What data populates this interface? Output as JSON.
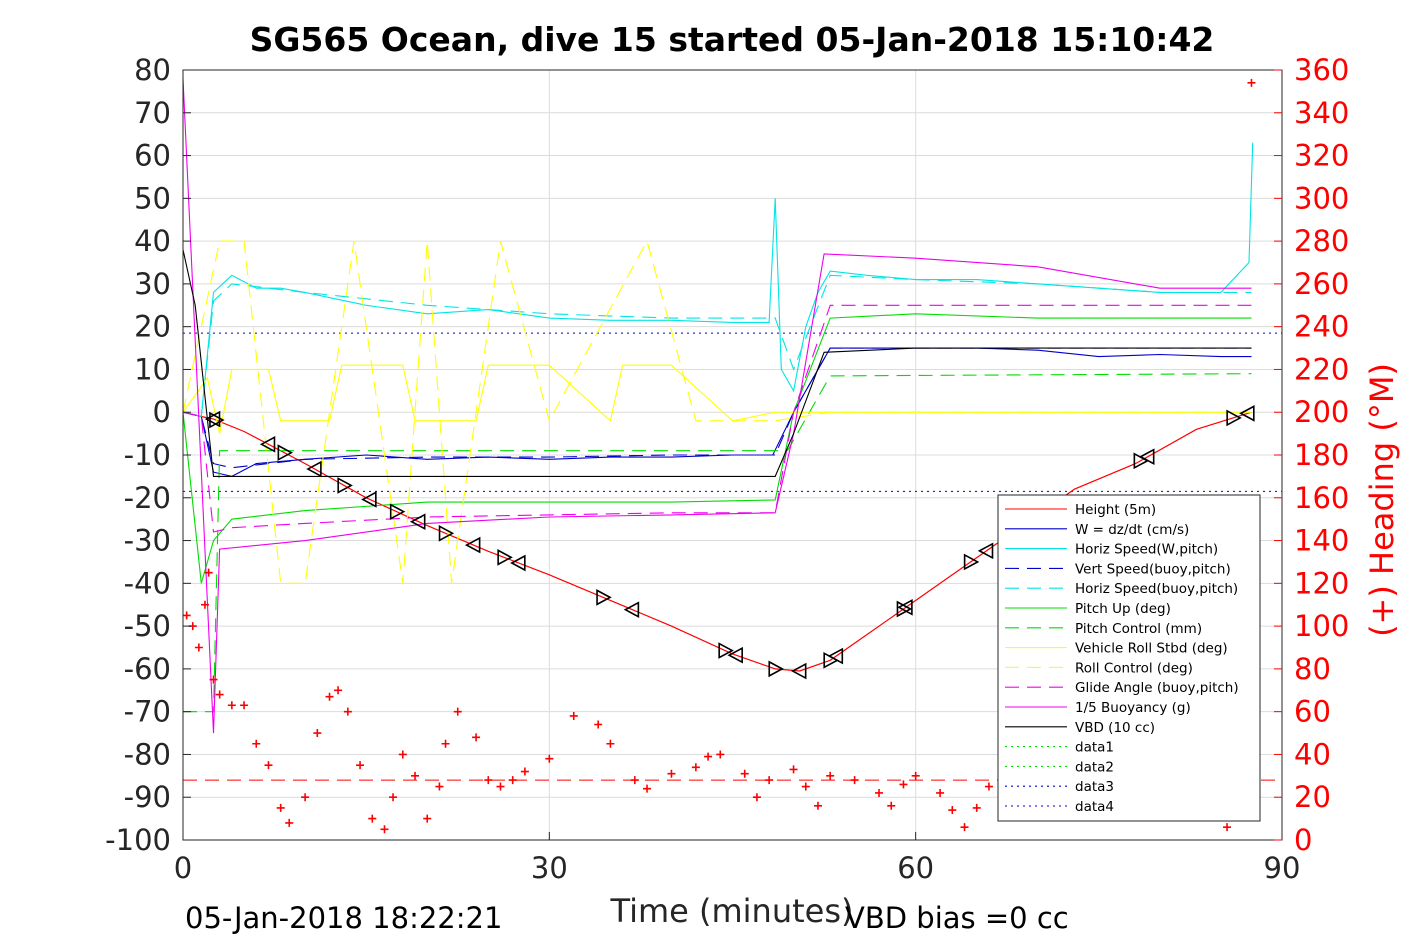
{
  "chart_data": {
    "type": "line",
    "title": "SG565 Ocean, dive 15 started 05-Jan-2018 15:10:42",
    "xlabel": "Time (minutes)",
    "ylabel_right": "(+) Heading (°M)",
    "footer_left": "05-Jan-2018 18:22:21",
    "footer_right": "VBD bias =0 cc",
    "xlim": [
      0,
      90
    ],
    "ylim_left": [
      -100,
      80
    ],
    "ylim_right": [
      0,
      360
    ],
    "grid": true,
    "legend_position": "right, lower half",
    "x_ticks": [
      "0",
      "30",
      "60",
      "90"
    ],
    "y_ticks_left": [
      "80",
      "70",
      "60",
      "50",
      "40",
      "30",
      "20",
      "10",
      "0",
      "-10",
      "-20",
      "-30",
      "-40",
      "-50",
      "-60",
      "-70",
      "-80",
      "-90",
      "-100"
    ],
    "y_ticks_right": [
      "360",
      "340",
      "320",
      "300",
      "280",
      "260",
      "240",
      "220",
      "200",
      "180",
      "160",
      "140",
      "120",
      "100",
      "80",
      "60",
      "40",
      "20",
      "0"
    ],
    "colors": {
      "red": "#ff0000",
      "blue": "#0000cc",
      "cyan": "#00e5e5",
      "green": "#00dd00",
      "yellow": "#ffff00",
      "magenta": "#ee00ee",
      "black": "#000000",
      "grid": "#dcdcdc"
    },
    "series": [
      {
        "name": "Height (5m)",
        "color": "#ff0000",
        "style": "solid",
        "x": [
          0,
          1.5,
          2.5,
          5,
          10,
          15,
          20,
          25,
          30,
          35,
          40,
          45,
          48.5,
          50.5,
          53,
          58,
          63,
          68,
          73,
          78,
          83,
          87.5
        ],
        "y": [
          0,
          -1,
          -1.6,
          -4.5,
          -12,
          -20,
          -26.5,
          -32.5,
          -38,
          -44,
          -50,
          -56.5,
          -60,
          -60.5,
          -58,
          -48,
          -38,
          -28,
          -18,
          -12,
          -4,
          0
        ]
      },
      {
        "name": "W = dz/dt (cm/s)",
        "color": "#0000cc",
        "style": "solid",
        "x": [
          0,
          1.5,
          2.5,
          4,
          6,
          10,
          15,
          20,
          25,
          30,
          35,
          40,
          45,
          48.3,
          50,
          51,
          53,
          60,
          65,
          70,
          75,
          80,
          85,
          87.5
        ],
        "y": [
          0,
          -1,
          -14,
          -15,
          -12,
          -11,
          -10,
          -11,
          -10.5,
          -11,
          -10.5,
          -10.5,
          -10,
          -10,
          0,
          5,
          15,
          15,
          15,
          14.5,
          13,
          13.5,
          13,
          13
        ]
      },
      {
        "name": "Horiz Speed(W,pitch)",
        "color": "#00e5e5",
        "style": "solid",
        "x": [
          0,
          1.5,
          2.5,
          4,
          6,
          8,
          10,
          15,
          20,
          25,
          30,
          35,
          40,
          45,
          48,
          48.5,
          49,
          50,
          51,
          52,
          53,
          56,
          60,
          65,
          70,
          75,
          80,
          85,
          87.3,
          87.6
        ],
        "y": [
          0,
          -1,
          28,
          32,
          29,
          29,
          28,
          25,
          23,
          24,
          22,
          21.5,
          21.5,
          21,
          21,
          50,
          10,
          5,
          20,
          28,
          33,
          32,
          31,
          31,
          30,
          29,
          28,
          28,
          35,
          63
        ]
      },
      {
        "name": "Vert Speed(buoy,pitch)",
        "color": "#0000cc",
        "style": "dashed",
        "x": [
          0,
          1.5,
          2.5,
          4,
          10,
          20,
          30,
          40,
          48.5,
          50,
          53,
          60,
          70,
          80,
          87.5
        ],
        "y": [
          0,
          -1,
          -12,
          -13,
          -11,
          -10.5,
          -10.5,
          -10,
          -10,
          0,
          15,
          15,
          15,
          15,
          15
        ]
      },
      {
        "name": "Horiz Speed(buoy,pitch)",
        "color": "#00e5e5",
        "style": "dashed",
        "x": [
          0,
          1.5,
          2.5,
          4,
          10,
          20,
          30,
          40,
          48.5,
          50,
          53,
          60,
          70,
          80,
          87.5
        ],
        "y": [
          0,
          -1,
          26,
          30,
          28,
          25,
          23,
          22,
          22,
          10,
          32,
          31,
          30,
          28,
          28
        ]
      },
      {
        "name": "Pitch Up (deg)",
        "color": "#00dd00",
        "style": "solid",
        "x": [
          0,
          1.5,
          2.5,
          4,
          10,
          20,
          30,
          40,
          48.5,
          50,
          53,
          60,
          70,
          80,
          87.5
        ],
        "y": [
          0,
          -40,
          -30,
          -25,
          -23,
          -21,
          -21,
          -21,
          -20.5,
          0,
          22,
          23,
          22,
          22,
          22
        ]
      },
      {
        "name": "Pitch Control (mm)",
        "color": "#00dd00",
        "style": "dashed",
        "x": [
          0,
          2.5,
          3,
          48.5,
          49.5,
          53,
          87.5
        ],
        "y": [
          -70,
          -70,
          -9,
          -9,
          -9,
          8.5,
          9
        ]
      },
      {
        "name": "Vehicle Roll Stbd (deg)",
        "color": "#ffff00",
        "style": "solid",
        "x": [
          0,
          2,
          3,
          4,
          7,
          8,
          12,
          13,
          18,
          19,
          24,
          25,
          30,
          35,
          36,
          40,
          45,
          48.5,
          50,
          53,
          60,
          70,
          80,
          87.5
        ],
        "y": [
          0,
          8,
          -5,
          10,
          10,
          -2,
          -2,
          11,
          11,
          -2,
          -2,
          11,
          11,
          -2,
          11,
          11,
          -2,
          0,
          0,
          0,
          0,
          0,
          0,
          0
        ]
      },
      {
        "name": "Roll Control (deg)",
        "color": "#ffff00",
        "style": "dashed",
        "x": [
          0,
          3,
          5,
          8,
          10,
          14,
          18,
          20,
          22,
          26,
          30,
          38,
          42,
          48.5,
          53,
          60,
          70,
          80,
          87.5
        ],
        "y": [
          0,
          40,
          40,
          -40,
          -40,
          40,
          -40,
          40,
          -40,
          40,
          -2,
          40,
          -2,
          -2,
          0,
          0,
          0,
          0,
          0
        ]
      },
      {
        "name": "Glide Angle (buoy,pitch)",
        "color": "#ee00ee",
        "style": "dashed",
        "x": [
          0,
          1.5,
          2.5,
          4,
          10,
          20,
          30,
          40,
          48.5,
          50,
          53,
          60,
          70,
          80,
          87.5
        ],
        "y": [
          0,
          -1,
          -28,
          -27,
          -26,
          -24.5,
          -24,
          -23.5,
          -23.5,
          0,
          25,
          25,
          25,
          25,
          25
        ]
      },
      {
        "name": "1/5 Buoyancy (g)",
        "color": "#ee00ee",
        "style": "solid",
        "x": [
          0,
          2.5,
          3,
          10,
          20,
          30,
          40,
          48.5,
          50,
          52.5,
          60,
          70,
          80,
          87.5
        ],
        "y": [
          78,
          -75,
          -32,
          -30,
          -26,
          -24.5,
          -24,
          -23.5,
          -5,
          37,
          36,
          34,
          29,
          29
        ]
      },
      {
        "name": "VBD (10 cc)",
        "color": "#000000",
        "style": "solid",
        "x": [
          0,
          1,
          2.5,
          5,
          10,
          20,
          30,
          40,
          48.5,
          50,
          52.5,
          60,
          70,
          80,
          87.5
        ],
        "y": [
          38,
          25,
          -15,
          -15,
          -15,
          -15,
          -15,
          -15,
          -15,
          -5,
          14,
          15,
          15,
          15,
          15
        ]
      },
      {
        "name": "data1",
        "color": "#00dd00",
        "style": "dotted",
        "x": [],
        "y": []
      },
      {
        "name": "data2",
        "color": "#00dd00",
        "style": "dotted",
        "x": [],
        "y": []
      },
      {
        "name": "data3",
        "color": "#0000cc",
        "style": "dotted",
        "x": [],
        "y": []
      },
      {
        "name": "data4",
        "color": "#0000cc",
        "style": "dotted",
        "x": [],
        "y": []
      }
    ],
    "reference_lines": {
      "dotted_y": [
        18.5,
        -18.5
      ],
      "dashed_red_y": -86
    },
    "heading_points": {
      "axis": "right",
      "x": [
        0.3,
        0.8,
        1.3,
        1.8,
        2.1,
        2.5,
        3,
        4,
        5,
        6,
        7,
        8,
        8.7,
        10,
        11,
        12,
        12.7,
        13.5,
        14.5,
        15.5,
        16.5,
        17.2,
        18,
        19,
        20,
        21,
        21.5,
        22.5,
        24,
        25,
        26,
        27,
        28,
        30,
        32,
        34,
        35,
        37,
        38,
        40,
        42,
        43,
        44,
        46,
        47,
        48,
        50,
        51,
        52,
        53,
        55,
        57,
        58,
        59,
        60,
        62,
        63,
        64,
        65,
        66,
        87.5,
        85.5
      ],
      "y": [
        105,
        100,
        90,
        110,
        125,
        75,
        68,
        63,
        63,
        45,
        35,
        15,
        8,
        20,
        50,
        67,
        70,
        60,
        35,
        10,
        5,
        20,
        40,
        30,
        10,
        25,
        45,
        60,
        48,
        28,
        25,
        28,
        32,
        38,
        58,
        54,
        45,
        28,
        24,
        31,
        34,
        39,
        40,
        31,
        20,
        28,
        33,
        25,
        16,
        30,
        28,
        22,
        16,
        26,
        30,
        22,
        14,
        6,
        15,
        25,
        354,
        6
      ]
    },
    "triangle_markers": {
      "series": "Height (5m)",
      "x": [
        2.5,
        2.7,
        7,
        8.3,
        10.8,
        13.2,
        15.3,
        17.5,
        19.3,
        21.5,
        23.8,
        26.3,
        27.5,
        34.4,
        36.8,
        44.4,
        45.3,
        48.5,
        50.5,
        53,
        53.5,
        59,
        59.2,
        64.5,
        65.8,
        78.4,
        79,
        86,
        87.2
      ]
    }
  }
}
